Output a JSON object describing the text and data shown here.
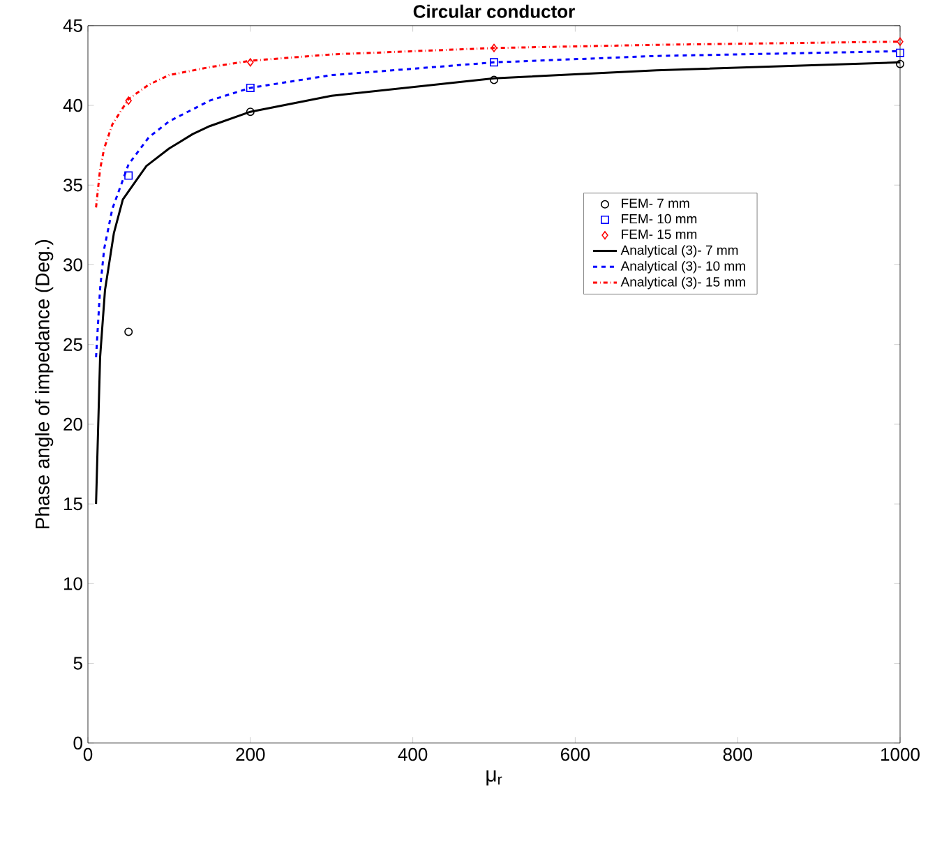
{
  "chart_data": {
    "type": "line",
    "title": "Circular conductor",
    "xlabel": "μ$_{r}$",
    "ylabel": "Phase angle of impedance (Deg.)",
    "xlim": [
      0,
      1000
    ],
    "xticks": [
      0,
      200,
      400,
      600,
      800,
      1000
    ],
    "ylim": [
      0,
      45
    ],
    "yticks": [
      0,
      5,
      10,
      15,
      20,
      25,
      30,
      35,
      40,
      45
    ],
    "grid": false,
    "legend": "right",
    "series": [
      {
        "name": "FEM- 7 mm",
        "type": "scatter",
        "marker": "circle",
        "color": "#000000",
        "x": [
          50,
          200,
          500,
          1000
        ],
        "values": [
          25.8,
          39.6,
          41.6,
          42.6
        ]
      },
      {
        "name": "FEM- 10 mm",
        "type": "scatter",
        "marker": "square",
        "color": "#0000ff",
        "x": [
          50,
          200,
          500,
          1000
        ],
        "values": [
          35.6,
          41.1,
          42.7,
          43.3
        ]
      },
      {
        "name": "FEM- 15 mm",
        "type": "scatter",
        "marker": "diamond",
        "color": "#ff0000",
        "x": [
          50,
          200,
          500,
          1000
        ],
        "values": [
          40.3,
          42.7,
          43.6,
          44.0
        ]
      },
      {
        "name": "Analytical (3)- 7 mm",
        "line_style": "solid",
        "color": "#000000",
        "x": [
          10,
          15,
          21,
          32,
          43,
          72,
          100,
          129,
          150,
          200,
          300,
          500,
          700,
          1000
        ],
        "values": [
          15,
          24.2,
          28.4,
          32.0,
          34.1,
          36.2,
          37.3,
          38.2,
          38.7,
          39.6,
          40.6,
          41.7,
          42.2,
          42.7
        ]
      },
      {
        "name": "Analytical (3)- 10 mm",
        "line_style": "dashed",
        "color": "#0000ff",
        "x": [
          10,
          15,
          20,
          30,
          50,
          75,
          100,
          150,
          200,
          300,
          500,
          700,
          1000
        ],
        "values": [
          24.2,
          28.5,
          31.0,
          33.5,
          36.3,
          38.0,
          39.0,
          40.3,
          41.1,
          41.9,
          42.7,
          43.1,
          43.4
        ]
      },
      {
        "name": "Analytical (3)- 15 mm",
        "line_style": "dashdot",
        "color": "#ff0000",
        "x": [
          10,
          15,
          20,
          30,
          50,
          75,
          100,
          150,
          200,
          300,
          500,
          700,
          1000
        ],
        "values": [
          33.6,
          36.0,
          37.3,
          38.8,
          40.4,
          41.3,
          41.9,
          42.4,
          42.8,
          43.2,
          43.6,
          43.8,
          44.0
        ]
      }
    ]
  }
}
